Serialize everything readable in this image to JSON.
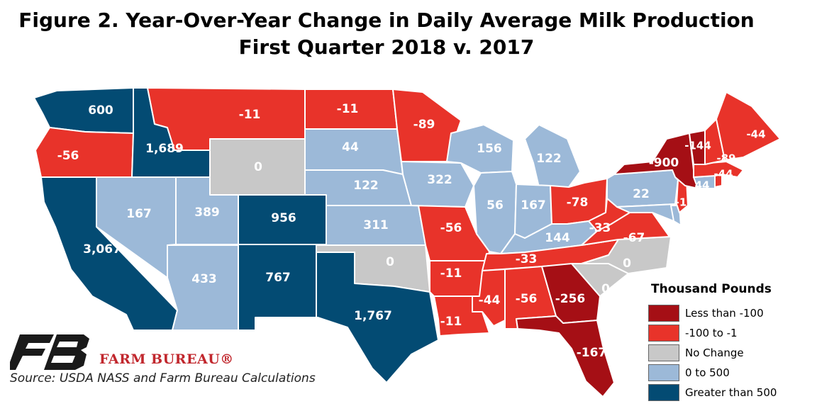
{
  "title": {
    "line1": "Figure 2. Year-Over-Year Change in Daily Average Milk Production",
    "line2": "First Quarter 2018 v. 2017"
  },
  "colors": {
    "less_than_-100": "#a50f15",
    "-100_to_-1": "#e8332a",
    "no_change": "#c8c8c8",
    "0_to_500": "#9cb9d8",
    "greater_than_500": "#034b73",
    "brand": "#c1272d"
  },
  "legend": {
    "title": "Thousand Pounds",
    "items": [
      {
        "label": "Less than -100",
        "color": "#a50f15"
      },
      {
        "label": "-100 to -1",
        "color": "#e8332a"
      },
      {
        "label": "No Change",
        "color": "#c8c8c8"
      },
      {
        "label": "0 to 500",
        "color": "#9cb9d8"
      },
      {
        "label": "Greater than 500",
        "color": "#034b73"
      }
    ]
  },
  "states": {
    "WA": {
      "value": "600",
      "category": "greater_than_500"
    },
    "OR": {
      "value": "-56",
      "category": "-100_to_-1"
    },
    "CA": {
      "value": "3,067",
      "category": "greater_than_500"
    },
    "ID": {
      "value": "1,689",
      "category": "greater_than_500"
    },
    "NV": {
      "value": "167",
      "category": "0_to_500"
    },
    "MT": {
      "value": "-11",
      "category": "-100_to_-1"
    },
    "WY": {
      "value": "0",
      "category": "no_change"
    },
    "UT": {
      "value": "389",
      "category": "0_to_500"
    },
    "AZ": {
      "value": "433",
      "category": "0_to_500"
    },
    "CO": {
      "value": "956",
      "category": "greater_than_500"
    },
    "NM": {
      "value": "767",
      "category": "greater_than_500"
    },
    "ND": {
      "value": "-11",
      "category": "-100_to_-1"
    },
    "SD": {
      "value": "44",
      "category": "0_to_500"
    },
    "NE": {
      "value": "122",
      "category": "0_to_500"
    },
    "KS": {
      "value": "311",
      "category": "0_to_500"
    },
    "OK": {
      "value": "0",
      "category": "no_change"
    },
    "TX": {
      "value": "1,767",
      "category": "greater_than_500"
    },
    "MN": {
      "value": "-89",
      "category": "-100_to_-1"
    },
    "IA": {
      "value": "322",
      "category": "0_to_500"
    },
    "MO": {
      "value": "-56",
      "category": "-100_to_-1"
    },
    "AR": {
      "value": "-11",
      "category": "-100_to_-1"
    },
    "LA": {
      "value": "-11",
      "category": "-100_to_-1"
    },
    "WI": {
      "value": "156",
      "category": "0_to_500"
    },
    "IL": {
      "value": "56",
      "category": "0_to_500"
    },
    "MI": {
      "value": "122",
      "category": "0_to_500"
    },
    "IN": {
      "value": "167",
      "category": "0_to_500"
    },
    "OH": {
      "value": "-78",
      "category": "-100_to_-1"
    },
    "KY": {
      "value": "144",
      "category": "0_to_500"
    },
    "TN": {
      "value": "-33",
      "category": "-100_to_-1"
    },
    "MS": {
      "value": "-44",
      "category": "-100_to_-1"
    },
    "AL": {
      "value": "-56",
      "category": "-100_to_-1"
    },
    "GA": {
      "value": "-256",
      "category": "less_than_-100"
    },
    "FL": {
      "value": "-167",
      "category": "less_than_-100"
    },
    "SC": {
      "value": "0",
      "category": "no_change"
    },
    "NC": {
      "value": "0",
      "category": "no_change"
    },
    "VA": {
      "value": "-67",
      "category": "-100_to_-1"
    },
    "WV": {
      "value": "-33",
      "category": "-100_to_-1"
    },
    "PA": {
      "value": "22",
      "category": "0_to_500"
    },
    "NY": {
      "value": "-900",
      "category": "less_than_-100"
    },
    "VT": {
      "value": "-144",
      "category": "less_than_-100"
    },
    "NH": {
      "value": "-89",
      "category": "-100_to_-1"
    },
    "ME": {
      "value": "-44",
      "category": "-100_to_-1"
    },
    "MA": {
      "value": "-44",
      "category": "-100_to_-1"
    },
    "CT": {
      "value": "44",
      "category": "0_to_500"
    },
    "NJ": {
      "value": "-1",
      "category": "-100_to_-1"
    },
    "MD": {
      "category": "0_to_500"
    },
    "DE": {
      "category": "0_to_500"
    },
    "RI": {
      "category": "-100_to_-1"
    }
  },
  "branding": {
    "name": "FARM BUREAU®",
    "logo_icon": "farm-bureau-fb-logo"
  },
  "source": "Source: USDA NASS and Farm Bureau Calculations"
}
